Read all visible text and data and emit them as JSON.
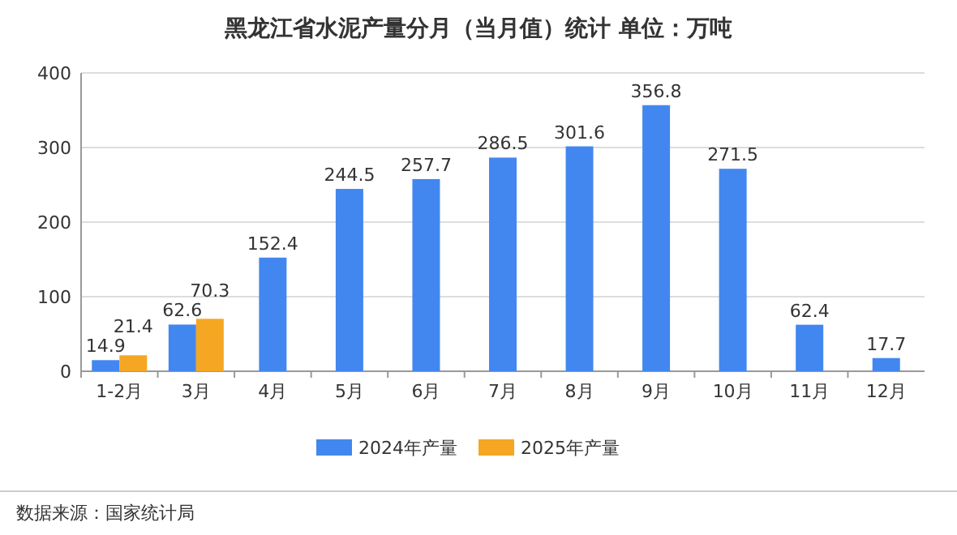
{
  "chart_data": {
    "type": "bar",
    "title": "黑龙江省水泥产量分月（当月值）统计  单位：万吨",
    "categories": [
      "1-2月",
      "3月",
      "4月",
      "5月",
      "6月",
      "7月",
      "8月",
      "9月",
      "10月",
      "11月",
      "12月"
    ],
    "series": [
      {
        "name": "2024年产量",
        "color": "#4287f0",
        "values": [
          14.9,
          62.6,
          152.4,
          244.5,
          257.7,
          286.5,
          301.6,
          356.8,
          271.5,
          62.4,
          17.7
        ]
      },
      {
        "name": "2025年产量",
        "color": "#f5a623",
        "values": [
          21.4,
          70.3,
          null,
          null,
          null,
          null,
          null,
          null,
          null,
          null,
          null
        ]
      }
    ],
    "ylim": [
      0,
      400
    ],
    "yticks": [
      0,
      100,
      200,
      300,
      400
    ],
    "grid": "y",
    "legend": "bottom",
    "data_labels": true,
    "annotations": [
      "数据来源：国家统计局"
    ]
  }
}
